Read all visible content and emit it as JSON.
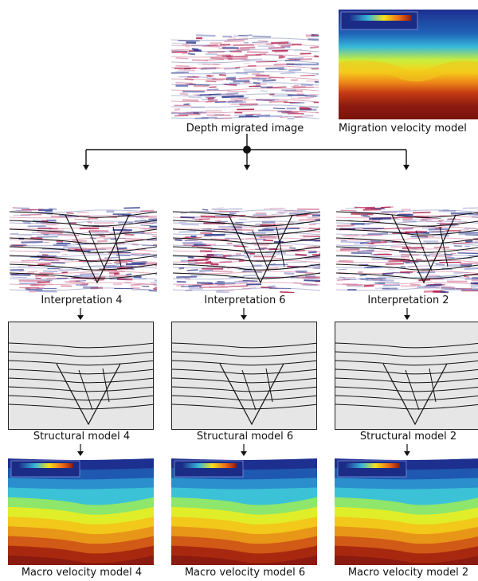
{
  "top": {
    "depth_image_label": "Depth migrated image",
    "velocity_label": "Migration velocity model"
  },
  "columns": [
    {
      "interpretation": "Interpretation 4",
      "structural": "Structural model 4",
      "macro": "Macro velocity model 4"
    },
    {
      "interpretation": "Interpretation 6",
      "structural": "Structural model 6",
      "macro": "Macro velocity model 6"
    },
    {
      "interpretation": "Interpretation 2",
      "structural": "Structural model 2",
      "macro": "Macro velocity model 2"
    }
  ],
  "colors": {
    "velocity_low": "#1d2f8f",
    "velocity_mid": "#f4e21a",
    "velocity_high": "#8b1a10",
    "structural_bg": "#e6e6e6",
    "seismic_red": "#b01848",
    "seismic_blue": "#2e3a8e"
  }
}
